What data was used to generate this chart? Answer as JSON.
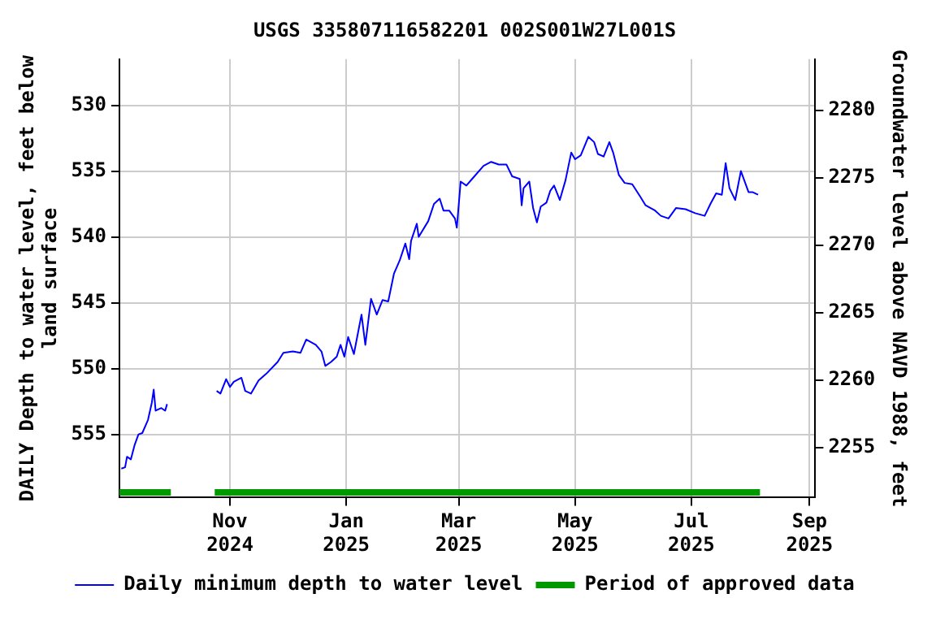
{
  "chart_data": {
    "type": "line",
    "title": "USGS 335807116582201 002S001W27L001S",
    "ylabel": "DAILY Depth to water level, feet below land surface",
    "y2label": "Groundwater level above NAVD 1988, feet",
    "x": [
      "2024-09-05",
      "2024-09-07",
      "2024-09-08",
      "2024-09-10",
      "2024-09-12",
      "2024-09-14",
      "2024-09-16",
      "2024-09-19",
      "2024-09-21",
      "2024-09-22",
      "2024-09-23",
      "2024-09-26",
      "2024-09-28",
      "2024-09-29",
      "2024-10-12",
      "2024-10-25",
      "2024-10-27",
      "2024-10-30",
      "2024-11-01",
      "2024-11-03",
      "2024-11-07",
      "2024-11-09",
      "2024-11-12",
      "2024-11-16",
      "2024-11-20",
      "2024-11-26",
      "2024-11-29",
      "2024-12-04",
      "2024-12-08",
      "2024-12-11",
      "2024-12-16",
      "2024-12-19",
      "2024-12-21",
      "2024-12-24",
      "2024-12-27",
      "2024-12-29",
      "2024-12-31",
      "2025-01-02",
      "2025-01-05",
      "2025-01-07",
      "2025-01-09",
      "2025-01-11",
      "2025-01-14",
      "2025-01-17",
      "2025-01-20",
      "2025-01-23",
      "2025-01-26",
      "2025-01-29",
      "2025-02-01",
      "2025-02-03",
      "2025-02-04",
      "2025-02-07",
      "2025-02-08",
      "2025-02-13",
      "2025-02-16",
      "2025-02-19",
      "2025-02-21",
      "2025-02-24",
      "2025-02-27",
      "2025-02-28",
      "2025-03-02",
      "2025-03-05",
      "2025-03-08",
      "2025-03-14",
      "2025-03-18",
      "2025-03-22",
      "2025-03-26",
      "2025-03-29",
      "2025-04-02",
      "2025-04-03",
      "2025-04-04",
      "2025-04-07",
      "2025-04-09",
      "2025-04-11",
      "2025-04-13",
      "2025-04-16",
      "2025-04-18",
      "2025-04-20",
      "2025-04-23",
      "2025-04-26",
      "2025-04-29",
      "2025-05-01",
      "2025-05-04",
      "2025-05-08",
      "2025-05-11",
      "2025-05-13",
      "2025-05-16",
      "2025-05-19",
      "2025-05-21",
      "2025-05-24",
      "2025-05-27",
      "2025-05-31",
      "2025-06-04",
      "2025-06-07",
      "2025-06-12",
      "2025-06-15",
      "2025-06-19",
      "2025-06-23",
      "2025-06-28",
      "2025-07-03",
      "2025-07-08",
      "2025-07-11",
      "2025-07-14",
      "2025-07-17",
      "2025-07-19",
      "2025-07-21",
      "2025-07-24",
      "2025-07-27",
      "2025-07-31",
      "2025-08-02",
      "2025-08-05"
    ],
    "series": [
      {
        "name": "Daily minimum depth to water level",
        "color": "#0000ff",
        "values": [
          557.6,
          557.5,
          556.7,
          556.9,
          555.8,
          555.0,
          554.9,
          553.9,
          552.6,
          551.6,
          553.2,
          553.0,
          553.2,
          552.7,
          null,
          551.7,
          551.9,
          550.8,
          551.4,
          551.0,
          550.7,
          551.7,
          551.9,
          550.9,
          550.4,
          549.5,
          548.8,
          548.7,
          548.8,
          547.8,
          548.2,
          548.7,
          549.8,
          549.5,
          549.1,
          548.2,
          549.1,
          547.6,
          548.9,
          547.4,
          545.9,
          548.2,
          544.7,
          545.9,
          544.8,
          544.9,
          542.8,
          541.8,
          540.5,
          541.7,
          540.3,
          539.0,
          540.0,
          538.8,
          537.5,
          537.1,
          538.0,
          538.0,
          538.6,
          539.3,
          535.8,
          536.1,
          535.6,
          534.6,
          534.3,
          534.5,
          534.5,
          535.4,
          535.6,
          537.6,
          536.3,
          535.8,
          537.8,
          538.9,
          537.7,
          537.4,
          536.5,
          536.1,
          537.2,
          535.7,
          533.6,
          534.1,
          533.8,
          532.4,
          532.8,
          533.7,
          533.9,
          532.8,
          533.6,
          535.3,
          535.9,
          536.0,
          536.9,
          537.6,
          538.0,
          538.4,
          538.6,
          537.8,
          537.9,
          538.2,
          538.4,
          537.5,
          536.7,
          536.8,
          534.4,
          536.3,
          537.2,
          535.0,
          536.6,
          536.6,
          536.8
        ]
      },
      {
        "name": "Period of approved data",
        "color": "#009900",
        "x": [
          "2024-09-04",
          "2024-10-01",
          "2024-10-12",
          "2024-10-24",
          "2025-08-06"
        ],
        "values": [
          559.4,
          559.4,
          null,
          559.4,
          559.4
        ]
      }
    ],
    "xlim": [
      "2024-09-04",
      "2025-09-04"
    ],
    "xticks": [
      {
        "value": "2024-11-01",
        "label": "Nov\n2024"
      },
      {
        "value": "2025-01-01",
        "label": "Jan\n2025"
      },
      {
        "value": "2025-03-01",
        "label": "Mar\n2025"
      },
      {
        "value": "2025-05-01",
        "label": "May\n2025"
      },
      {
        "value": "2025-07-01",
        "label": "Jul\n2025"
      },
      {
        "value": "2025-09-01",
        "label": "Sep\n2025"
      }
    ],
    "ylim": [
      559.8,
      526.5
    ],
    "yticks": [
      530,
      535,
      540,
      545,
      550,
      555
    ],
    "y2lim": [
      2251.3,
      2283.8
    ],
    "y2ticks": [
      2255,
      2260,
      2265,
      2270,
      2275,
      2280
    ],
    "grid": true,
    "legend": "bottom",
    "line_style": "solid"
  }
}
